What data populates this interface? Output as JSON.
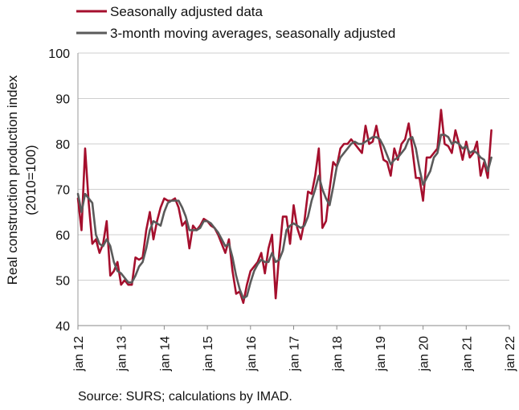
{
  "chart_data": {
    "type": "line",
    "ylabel_lines": [
      "Real construction production index",
      "(2010=100)"
    ],
    "ylim": [
      40,
      100
    ],
    "yticks": [
      40,
      50,
      60,
      70,
      80,
      90,
      100
    ],
    "grid": true,
    "legend_placement": "top-left",
    "x_tick_labels": [
      "jan 12",
      "jan 13",
      "jan 14",
      "jan 15",
      "jan 16",
      "jan 17",
      "jan 18",
      "jan 19",
      "jan 20",
      "jan 21",
      "jan 22"
    ],
    "x_start": "jan 12",
    "x_end": "feb 22",
    "series": [
      {
        "name": "Seasonally adjusted data",
        "color": "#a50f2d",
        "values": [
          68,
          61,
          79,
          67,
          58,
          59,
          56,
          58,
          63,
          51,
          52,
          54,
          49,
          50,
          49,
          49,
          55,
          54.5,
          55,
          61,
          65,
          59,
          63,
          66,
          68,
          67.5,
          67.5,
          68,
          66,
          62,
          63,
          57,
          62,
          61,
          62,
          63.5,
          63,
          62,
          61.5,
          60,
          58,
          56,
          59,
          52,
          47,
          47.5,
          45,
          49,
          52,
          53,
          54,
          56,
          51.5,
          57,
          60,
          46,
          56,
          64,
          64,
          58,
          66.5,
          61.5,
          59,
          63,
          69.5,
          69,
          73,
          79,
          61.5,
          63,
          70,
          76,
          75,
          79,
          80,
          80,
          81,
          80,
          79,
          78,
          84,
          80,
          80.5,
          84,
          80,
          76.5,
          76,
          73,
          79,
          76.5,
          80,
          81,
          84.5,
          79,
          72.5,
          72.5,
          67.5,
          77,
          77,
          78,
          79,
          87.5,
          80,
          79.5,
          78,
          83,
          80,
          76.5,
          80.5,
          77,
          78,
          80.5,
          73,
          76,
          72.5,
          83
        ]
      },
      {
        "name": "3-month moving averages, seasonally adjusted",
        "color": "#5a5a5a",
        "values": [
          69,
          65,
          69,
          68,
          67,
          60,
          58,
          57.5,
          59,
          57.5,
          54,
          52,
          51.5,
          50.5,
          49.5,
          49.5,
          51,
          53,
          54,
          57,
          61,
          63,
          62.5,
          62,
          65,
          67,
          67.5,
          67.5,
          67.5,
          66,
          64,
          61,
          61,
          61,
          61.5,
          63,
          63,
          62.5,
          61.5,
          60.5,
          59,
          57.5,
          58,
          55,
          51,
          48,
          46,
          46.5,
          49.5,
          52,
          53.5,
          54.5,
          54,
          54,
          56,
          54,
          54.5,
          56.5,
          61,
          62,
          62.5,
          62,
          61.5,
          62,
          64,
          67.5,
          70,
          73,
          70,
          68,
          66.5,
          70.5,
          75,
          77,
          78,
          79,
          80,
          80.5,
          80,
          80,
          80.5,
          81,
          81.5,
          81.5,
          81,
          79.5,
          77.5,
          75.5,
          76.5,
          77,
          78,
          79,
          81,
          81.5,
          79,
          74.5,
          71,
          72.5,
          74,
          77,
          78,
          82,
          82,
          81.5,
          80,
          80.5,
          80,
          79,
          79.5,
          78,
          78.5,
          78,
          77,
          76.5,
          74,
          77
        ]
      }
    ],
    "source": "Source: SURS; calculations by IMAD."
  }
}
